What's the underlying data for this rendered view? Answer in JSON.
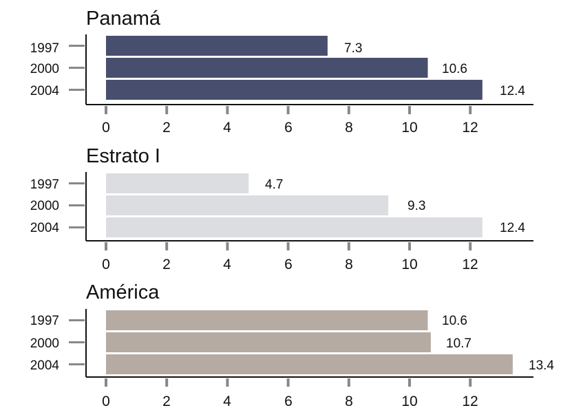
{
  "chart_data": [
    {
      "type": "bar",
      "orientation": "horizontal",
      "title": "Panamá",
      "categories": [
        "1997",
        "2000",
        "2004"
      ],
      "values": [
        7.3,
        10.6,
        12.4
      ],
      "value_labels": [
        "7.3",
        "10.6",
        "12.4"
      ],
      "xlim": [
        0,
        14
      ],
      "xticks": [
        "0",
        "2",
        "4",
        "6",
        "8",
        "10",
        "12"
      ],
      "color": "#484e6d",
      "grid": false
    },
    {
      "type": "bar",
      "orientation": "horizontal",
      "title": "Estrato I",
      "categories": [
        "1997",
        "2000",
        "2004"
      ],
      "values": [
        4.7,
        9.3,
        12.4
      ],
      "value_labels": [
        "4.7",
        "9.3",
        "12.4"
      ],
      "xlim": [
        0,
        14
      ],
      "xticks": [
        "0",
        "2",
        "4",
        "6",
        "8",
        "10",
        "12"
      ],
      "color": "#dcdde0",
      "grid": false
    },
    {
      "type": "bar",
      "orientation": "horizontal",
      "title": "América",
      "categories": [
        "1997",
        "2000",
        "2004"
      ],
      "values": [
        10.6,
        10.7,
        13.4
      ],
      "value_labels": [
        "10.6",
        "10.7",
        "13.4"
      ],
      "xlim": [
        0,
        14
      ],
      "xticks": [
        "0",
        "2",
        "4",
        "6",
        "8",
        "10",
        "12"
      ],
      "color": "#b5aba3",
      "grid": false
    }
  ]
}
